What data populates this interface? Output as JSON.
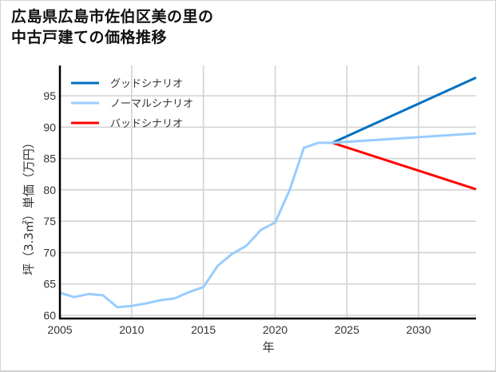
{
  "title_line1": "広島県広島市佐伯区美の里の",
  "title_line2": "中古戸建ての価格推移",
  "chart_data": {
    "type": "line",
    "title": "広島県広島市佐伯区美の里の中古戸建ての価格推移",
    "xlabel": "年",
    "ylabel": "坪（3.3㎡）単価（万円）",
    "xlim": [
      2005,
      2034
    ],
    "ylim": [
      59.5,
      99
    ],
    "xticks": [
      2005,
      2010,
      2015,
      2020,
      2025,
      2030
    ],
    "yticks": [
      60,
      65,
      70,
      75,
      80,
      85,
      90,
      95
    ],
    "grid": true,
    "legend_position": "upper left",
    "colors": {
      "good": "#0070c0",
      "normal": "#99ccff",
      "bad": "#ff0000"
    },
    "series": [
      {
        "name": "ノーマルシナリオ",
        "key": "normal",
        "x": [
          2005,
          2006,
          2007,
          2008,
          2009,
          2010,
          2011,
          2012,
          2013,
          2014,
          2015,
          2016,
          2017,
          2018,
          2019,
          2020,
          2021,
          2022,
          2023,
          2024,
          2034
        ],
        "values": [
          63.6,
          62.9,
          63.4,
          63.2,
          61.3,
          61.5,
          61.9,
          62.4,
          62.7,
          63.7,
          64.5,
          67.9,
          69.8,
          71.1,
          73.6,
          74.8,
          79.9,
          86.7,
          87.5,
          87.5,
          89.0
        ]
      },
      {
        "name": "グッドシナリオ",
        "key": "good",
        "x": [
          2024,
          2034
        ],
        "values": [
          87.5,
          97.9
        ]
      },
      {
        "name": "バッドシナリオ",
        "key": "bad",
        "x": [
          2024,
          2034
        ],
        "values": [
          87.5,
          80.1
        ]
      }
    ],
    "legend": [
      "グッドシナリオ",
      "ノーマルシナリオ",
      "バッドシナリオ"
    ]
  }
}
